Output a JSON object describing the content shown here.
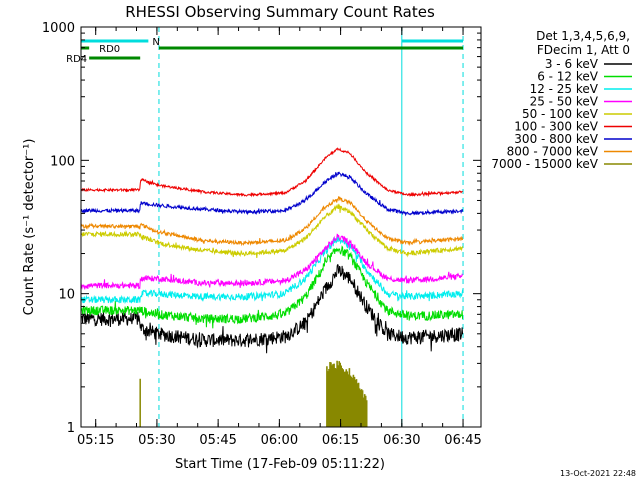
{
  "chart_data": {
    "type": "line",
    "title": "RHESSI Observing Summary Count Rates",
    "xlabel": "Start Time (17-Feb-09 05:11:22)",
    "ylabel": "Count Rate (s⁻¹ detector⁻¹)",
    "y_scale": "log",
    "ylim": [
      1,
      1000
    ],
    "xlim": [
      "05:11",
      "06:49"
    ],
    "x_tick_labels": [
      "05:15",
      "05:30",
      "05:45",
      "06:00",
      "06:15",
      "06:30",
      "06:45"
    ],
    "y_tick_labels": [
      "1",
      "10",
      "100",
      "1000"
    ],
    "legend_header": [
      "Det 1,3,4,5,6,9,",
      "FDecim 1, Att 0"
    ],
    "legend_position": "right",
    "footer": "13-Oct-2021 22:48",
    "x_unit": "minutes since 05:11:22",
    "x_ticks": [
      3.6,
      18.6,
      33.6,
      48.6,
      63.6,
      78.6,
      93.6
    ],
    "solid_vlines": [
      0,
      78.6
    ],
    "dashed_vlines": [
      19.1,
      93.6
    ],
    "flags": [
      {
        "label": "N",
        "color": "#00dddd",
        "segments": [
          [
            0,
            16.5
          ],
          [
            78.6,
            93.6
          ]
        ]
      },
      {
        "label": "RD0",
        "color": "#008800",
        "segments": [
          [
            0,
            2
          ],
          [
            19.1,
            93.6
          ]
        ]
      },
      {
        "label": "RD4",
        "color": "#008800",
        "segments": [
          [
            2,
            14.5
          ]
        ]
      }
    ],
    "attenuator_state_marker": {
      "x": 14.5,
      "y_range": [
        1,
        2.3
      ],
      "color": "#888800"
    },
    "x_samples": [
      0,
      14.4,
      14.6,
      19,
      30,
      40,
      50,
      55,
      60,
      63,
      66,
      70,
      75,
      80,
      93.6
    ],
    "series": [
      {
        "name": "3 - 6 keV",
        "color": "#000000",
        "noise": 0.12,
        "values": [
          6.5,
          6.5,
          5.5,
          5,
          4.5,
          4.5,
          4.8,
          6,
          11,
          15,
          13,
          8,
          5,
          4.7,
          5
        ]
      },
      {
        "name": "6 - 12 keV",
        "color": "#00dd00",
        "noise": 0.08,
        "values": [
          7.5,
          7.5,
          7.5,
          7,
          6.5,
          6.5,
          7,
          9.5,
          17,
          22,
          19,
          12,
          7.5,
          6.8,
          7
        ]
      },
      {
        "name": "12 - 25 keV",
        "color": "#00eeee",
        "noise": 0.06,
        "values": [
          9,
          9,
          10,
          10,
          9.5,
          9.5,
          10,
          13,
          21,
          26,
          23,
          15,
          10,
          9.5,
          10
        ]
      },
      {
        "name": "25 - 50 keV",
        "color": "#ff00ff",
        "noise": 0.05,
        "values": [
          11.5,
          11.5,
          13,
          13,
          12,
          12,
          12.5,
          15,
          22,
          27,
          24,
          17,
          13,
          12.5,
          13.5
        ]
      },
      {
        "name": "50 - 100 keV",
        "color": "#cccc00",
        "noise": 0.04,
        "values": [
          28,
          28,
          27,
          24,
          21,
          20,
          21,
          26,
          38,
          45,
          41,
          30,
          22,
          20,
          22
        ]
      },
      {
        "name": "100 - 300 keV",
        "color": "#ee0000",
        "noise": 0.02,
        "values": [
          60,
          60,
          72,
          65,
          58,
          55,
          57,
          70,
          105,
          122,
          112,
          80,
          60,
          55,
          58
        ]
      },
      {
        "name": "300 - 800 keV",
        "color": "#0000cc",
        "noise": 0.03,
        "values": [
          42,
          42,
          48,
          46,
          43,
          41,
          42,
          50,
          70,
          80,
          74,
          56,
          43,
          40,
          42
        ]
      },
      {
        "name": "800 - 7000 keV",
        "color": "#ee8800",
        "noise": 0.03,
        "values": [
          32,
          32,
          33,
          29,
          25,
          24,
          25,
          31,
          45,
          52,
          48,
          35,
          26,
          24,
          26
        ]
      },
      {
        "name": "7000 - 15000 keV",
        "color": "#888800",
        "noise": 0,
        "values": [
          null,
          null,
          null,
          null,
          null,
          null,
          null,
          null,
          2.8,
          3.0,
          2.6,
          1.6,
          null,
          null,
          null
        ]
      }
    ]
  }
}
